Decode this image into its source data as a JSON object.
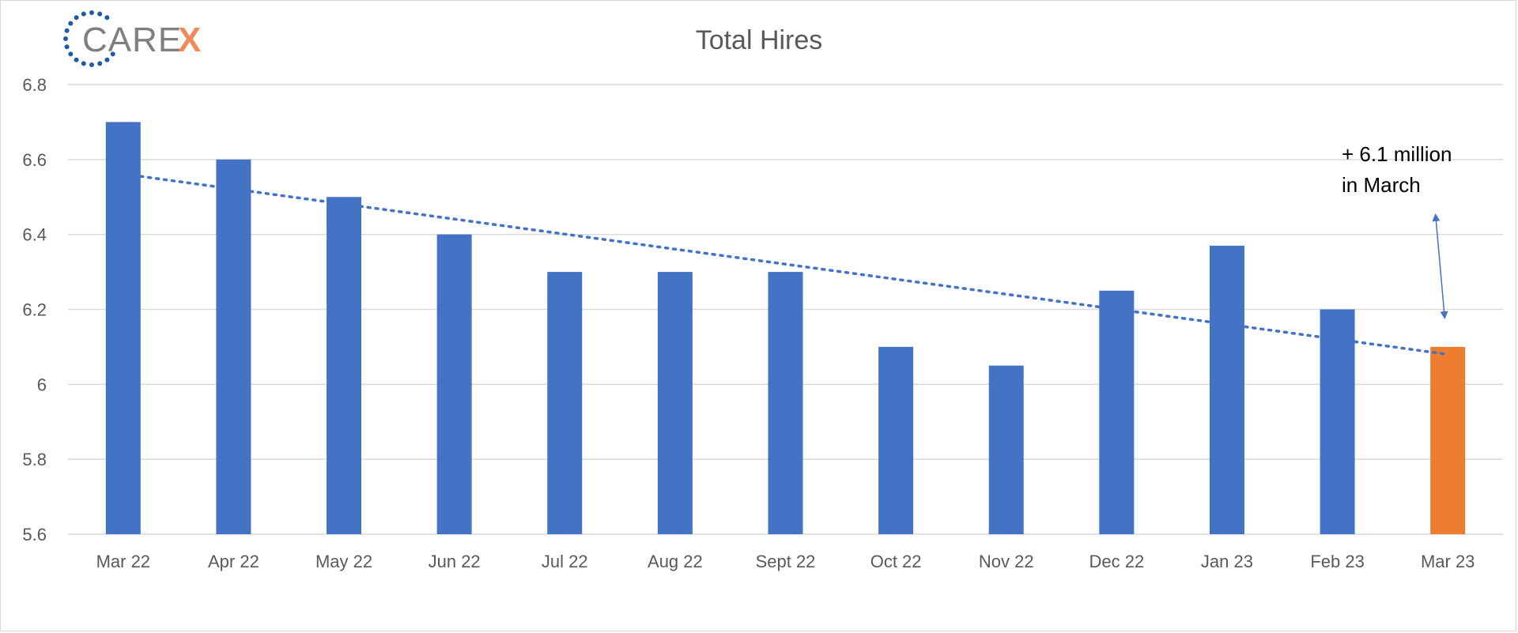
{
  "logo": {
    "text": "CARE",
    "accent": "X",
    "ring_color": "#1f5aa6",
    "accent_color": "#f08a5a"
  },
  "chart_data": {
    "type": "bar",
    "title": "Total Hires",
    "xlabel": "",
    "ylabel": "",
    "categories": [
      "Mar 22",
      "Apr 22",
      "May 22",
      "Jun 22",
      "Jul 22",
      "Aug 22",
      "Sept 22",
      "Oct 22",
      "Nov 22",
      "Dec 22",
      "Jan 23",
      "Feb 23",
      "Mar 23"
    ],
    "values": [
      6.7,
      6.6,
      6.5,
      6.4,
      6.3,
      6.3,
      6.3,
      6.1,
      6.05,
      6.25,
      6.37,
      6.2,
      6.1
    ],
    "ylim": [
      5.6,
      6.8
    ],
    "yticks": [
      "5.6",
      "5.8",
      "6",
      "6.2",
      "6.4",
      "6.6",
      "6.8"
    ],
    "grid": true,
    "bar_color": "#4472c4",
    "highlight_color": "#ed7d31",
    "highlight_index": 12,
    "trendline": {
      "style": "dotted",
      "color": "#4472c4",
      "start": 6.555,
      "end": 6.08
    },
    "annotation": {
      "line1": "+ 6.1 million",
      "line2": "in March"
    }
  }
}
